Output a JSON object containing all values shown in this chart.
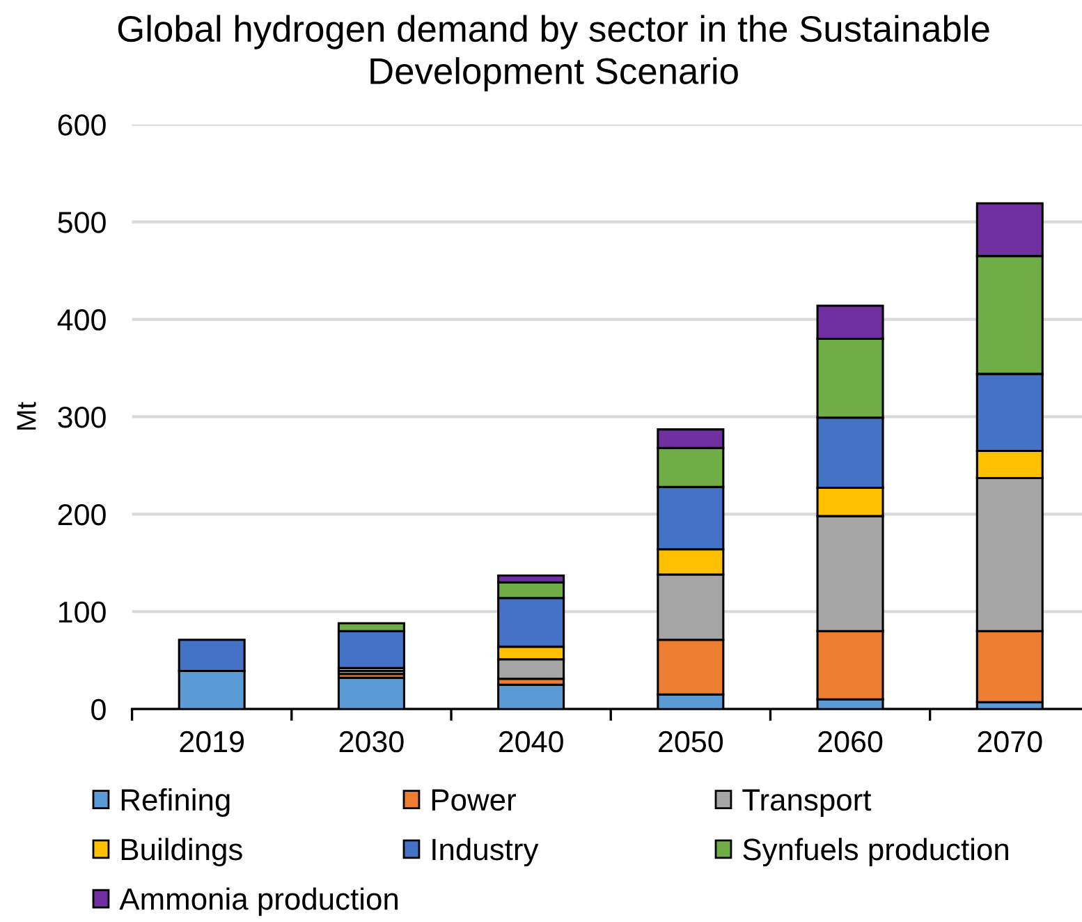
{
  "chart_data": {
    "type": "bar",
    "title": "Global hydrogen demand by sector in the Sustainable\nDevelopment Scenario",
    "ylabel": "Mt",
    "categories": [
      "2019",
      "2030",
      "2040",
      "2050",
      "2060",
      "2070"
    ],
    "stacked": true,
    "series": [
      {
        "name": "Refining",
        "color": "#5b9bd5",
        "values": [
          39,
          32,
          25,
          15,
          10,
          7
        ]
      },
      {
        "name": "Power",
        "color": "#ed7d31",
        "values": [
          null,
          4,
          6,
          56,
          70,
          73
        ]
      },
      {
        "name": "Transport",
        "color": "#a5a5a5",
        "values": [
          null,
          3,
          20,
          67,
          118,
          157
        ]
      },
      {
        "name": "Buildings",
        "color": "#ffc000",
        "values": [
          null,
          3,
          13,
          26,
          29,
          28
        ]
      },
      {
        "name": "Industry",
        "color": "#4472c4",
        "values": [
          32,
          38,
          50,
          64,
          72,
          79
        ]
      },
      {
        "name": "Synfuels production",
        "color": "#70ad47",
        "values": [
          null,
          8,
          16,
          40,
          81,
          121
        ]
      },
      {
        "name": "Ammonia production",
        "color": "#7030a0",
        "values": [
          null,
          null,
          7,
          19,
          34,
          54
        ]
      }
    ],
    "ylim": [
      0,
      600
    ],
    "yticks": [
      0,
      100,
      200,
      300,
      400,
      500,
      600
    ],
    "grid": "y",
    "legend": "bottom"
  }
}
